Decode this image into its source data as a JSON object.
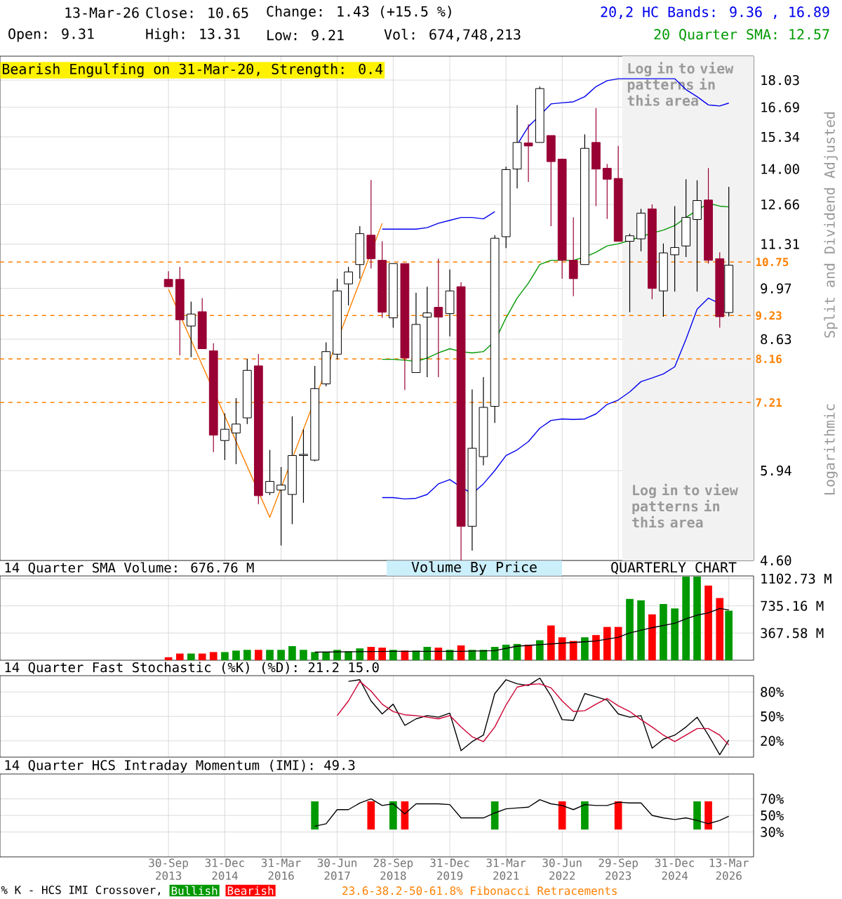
{
  "chart_data": [
    {
      "type": "candlestick",
      "title": "13-Mar-26",
      "x": [
        "2013-09-30",
        "2013-12-31",
        "2014-03-31",
        "2014-06-30",
        "2014-09-30",
        "2014-12-31",
        "2015-03-31",
        "2015-06-30",
        "2015-09-30",
        "2015-12-31",
        "2016-03-31",
        "2016-06-30",
        "2016-09-30",
        "2016-12-31",
        "2017-03-31",
        "2017-06-30",
        "2017-09-30",
        "2017-12-31",
        "2018-03-31",
        "2018-06-30",
        "2018-09-28",
        "2018-12-31",
        "2019-03-31",
        "2019-06-30",
        "2019-09-30",
        "2019-12-31",
        "2020-03-31",
        "2020-06-30",
        "2020-09-30",
        "2020-12-31",
        "2021-03-31",
        "2021-06-30",
        "2021-09-30",
        "2021-12-31",
        "2022-03-31",
        "2022-06-30",
        "2022-09-30",
        "2022-12-31",
        "2023-03-31",
        "2023-06-30",
        "2023-09-29",
        "2023-12-31",
        "2024-03-31",
        "2024-06-30",
        "2024-09-30",
        "2024-12-31",
        "2025-03-31",
        "2025-06-30",
        "2025-09-30",
        "2025-12-31",
        "2026-03-13"
      ],
      "ohlc": [
        [
          10.23,
          10.47,
          10.02,
          10.02
        ],
        [
          10.23,
          10.6,
          8.24,
          9.12
        ],
        [
          8.96,
          9.6,
          8.2,
          9.27
        ],
        [
          9.33,
          9.7,
          8.4,
          8.4
        ],
        [
          8.35,
          8.53,
          6.26,
          6.57
        ],
        [
          6.47,
          6.99,
          6.12,
          6.68
        ],
        [
          6.61,
          7.3,
          6.05,
          6.78
        ],
        [
          6.9,
          8.16,
          6.78,
          7.9
        ],
        [
          8.0,
          8.27,
          5.4,
          5.53
        ],
        [
          5.58,
          6.3,
          5.54,
          5.76
        ],
        [
          5.62,
          6.0,
          4.8,
          5.7
        ],
        [
          5.55,
          6.93,
          5.1,
          6.2
        ],
        [
          6.2,
          6.68,
          5.42,
          6.22
        ],
        [
          6.12,
          8.0,
          6.1,
          7.5
        ],
        [
          7.6,
          8.55,
          7.55,
          8.33
        ],
        [
          8.27,
          10.25,
          8.15,
          9.9
        ],
        [
          10.1,
          10.6,
          9.5,
          10.45
        ],
        [
          10.67,
          11.9,
          10.25,
          11.65
        ],
        [
          11.6,
          13.57,
          10.55,
          10.85
        ],
        [
          10.8,
          11.4,
          9.17,
          9.32
        ],
        [
          9.17,
          10.7,
          8.92,
          10.7
        ],
        [
          10.7,
          10.7,
          7.47,
          8.18
        ],
        [
          7.85,
          9.85,
          7.85,
          9.0
        ],
        [
          9.19,
          10.02,
          7.75,
          9.3
        ],
        [
          9.45,
          10.85,
          7.75,
          9.19
        ],
        [
          9.28,
          10.52,
          8.7,
          9.9
        ],
        [
          10.02,
          10.15,
          4.6,
          5.07
        ],
        [
          5.07,
          7.48,
          4.73,
          6.33
        ],
        [
          6.18,
          7.75,
          6.03,
          7.11
        ],
        [
          7.13,
          11.6,
          6.8,
          11.5
        ],
        [
          11.55,
          14.1,
          11.18,
          13.98
        ],
        [
          14.0,
          16.8,
          13.25,
          15.1
        ],
        [
          15.08,
          15.9,
          13.5,
          14.95
        ],
        [
          15.1,
          17.7,
          15.1,
          17.6
        ],
        [
          15.4,
          15.4,
          11.9,
          14.3
        ],
        [
          14.4,
          14.4,
          10.25,
          10.8
        ],
        [
          10.8,
          12.2,
          9.75,
          10.25
        ],
        [
          10.67,
          15.45,
          10.67,
          14.85
        ],
        [
          15.1,
          16.65,
          12.6,
          14.0
        ],
        [
          14.03,
          14.2,
          12.15,
          13.6
        ],
        [
          13.63,
          14.95,
          11.4,
          11.4
        ],
        [
          11.4,
          11.65,
          9.32,
          11.58
        ],
        [
          11.48,
          12.5,
          11.08,
          12.35
        ],
        [
          12.5,
          12.66,
          9.67,
          9.97
        ],
        [
          9.9,
          11.33,
          9.2,
          11.03
        ],
        [
          10.97,
          12.6,
          9.88,
          11.2
        ],
        [
          11.25,
          13.6,
          10.9,
          12.2
        ],
        [
          12.13,
          13.56,
          9.88,
          12.8
        ],
        [
          12.82,
          14.04,
          10.7,
          10.8
        ],
        [
          10.85,
          11.05,
          8.92,
          9.2
        ],
        [
          9.31,
          13.31,
          9.21,
          10.65
        ]
      ],
      "colors": [
        "#990033",
        "#990033",
        "#ffffff",
        "#990033",
        "#990033",
        "#ffffff",
        "#ffffff",
        "#ffffff",
        "#990033",
        "#ffffff",
        "#ffffff",
        "#ffffff",
        "#ffffff",
        "#ffffff",
        "#ffffff",
        "#ffffff",
        "#ffffff",
        "#ffffff",
        "#990033",
        "#990033",
        "#ffffff",
        "#990033",
        "#ffffff",
        "#ffffff",
        "#990033",
        "#ffffff",
        "#990033",
        "#ffffff",
        "#ffffff",
        "#ffffff",
        "#ffffff",
        "#ffffff",
        "#990033",
        "#ffffff",
        "#990033",
        "#990033",
        "#990033",
        "#ffffff",
        "#990033",
        "#990033",
        "#990033",
        "#ffffff",
        "#ffffff",
        "#990033",
        "#ffffff",
        "#ffffff",
        "#ffffff",
        "#ffffff",
        "#990033",
        "#990033",
        "#ffffff"
      ],
      "series": [
        {
          "type": "line",
          "name": "20,2 HC Bands: 9.36 , 16.89",
          "color": "#0000ee",
          "values": [
            null,
            null,
            null,
            null,
            null,
            null,
            null,
            null,
            null,
            null,
            null,
            null,
            null,
            null,
            null,
            null,
            null,
            null,
            null,
            11.8,
            11.8,
            11.8,
            11.8,
            11.85,
            12.0,
            12.1,
            12.2,
            12.2,
            12.15,
            12.4,
            null,
            15.0,
            15.8,
            16.3,
            16.85,
            16.9,
            16.95,
            17.2,
            17.7,
            18.0,
            18.1,
            18.1,
            18.1,
            18.1,
            18.1,
            18.1,
            17.55,
            17.2,
            16.8,
            16.75,
            16.89
          ]
        },
        {
          "type": "line",
          "color": "#0000ee",
          "values": [
            null,
            null,
            null,
            null,
            null,
            null,
            null,
            null,
            null,
            null,
            null,
            null,
            null,
            null,
            null,
            null,
            null,
            null,
            null,
            5.5,
            5.5,
            5.48,
            5.49,
            5.55,
            5.72,
            5.79,
            5.67,
            5.56,
            5.72,
            5.94,
            6.2,
            6.3,
            6.45,
            6.7,
            6.85,
            6.88,
            6.87,
            6.88,
            6.98,
            7.17,
            7.26,
            7.43,
            7.65,
            7.73,
            7.82,
            7.98,
            8.63,
            9.4,
            9.7,
            9.55,
            null
          ]
        },
        {
          "type": "line",
          "name": "20 Quarter SMA: 12.57",
          "color": "#009900",
          "values": [
            null,
            null,
            null,
            null,
            null,
            null,
            null,
            null,
            null,
            null,
            null,
            null,
            null,
            null,
            null,
            null,
            null,
            null,
            null,
            8.15,
            8.15,
            8.13,
            8.1,
            8.18,
            8.3,
            8.4,
            8.33,
            8.3,
            8.33,
            8.58,
            9.17,
            9.7,
            10.12,
            10.67,
            10.8,
            10.8,
            10.8,
            10.9,
            11.05,
            11.25,
            11.32,
            11.43,
            11.55,
            11.67,
            11.77,
            11.92,
            12.2,
            12.45,
            12.7,
            12.6,
            12.57
          ]
        },
        {
          "type": "line",
          "color": "#ff8000",
          "x": [
            "2013-09-30",
            "2015-12-31",
            "2018-06-30"
          ],
          "values": [
            9.95,
            5.2,
            12.0
          ]
        }
      ],
      "xlim": [
        "2010-01-01",
        "2026-10-01"
      ],
      "ylim": [
        4.6,
        19.3
      ],
      "log": true,
      "xticks": [
        {
          "value": "2013-09-30",
          "label": null
        },
        {
          "value": "2014-12-31",
          "label": null
        },
        {
          "value": "2016-03-31",
          "label": null
        },
        {
          "value": "2017-06-30",
          "label": null
        },
        {
          "value": "2018-09-28",
          "label": null
        },
        {
          "value": "2019-12-31",
          "label": null
        },
        {
          "value": "2021-03-31",
          "label": null
        },
        {
          "value": "2022-06-30",
          "label": null
        },
        {
          "value": "2023-09-29",
          "label": null
        },
        {
          "value": "2024-12-31",
          "label": null
        },
        {
          "value": "2026-03-13",
          "label": null
        }
      ],
      "yticks": [
        18.03,
        16.69,
        15.34,
        {
          "value": 14,
          "label": "14.00"
        },
        12.66,
        11.31,
        9.97,
        8.63,
        5.94,
        {
          "value": 4.6,
          "label": "4.60"
        }
      ],
      "tick_labels": "y",
      "grid": true,
      "legend": "top right",
      "ylabel": "Split and Dividend Adjusted",
      "ref_lines": [
        {
          "axis": "y",
          "value": 10.75,
          "label": "10.75",
          "color": "#ff8000",
          "line_style": "dashed"
        },
        {
          "axis": "y",
          "value": 9.23,
          "label": "9.23",
          "color": "#ff8000",
          "line_style": "dashed"
        },
        {
          "axis": "y",
          "value": 8.16,
          "label": "8.16",
          "color": "#ff8000",
          "line_style": "dashed"
        },
        {
          "axis": "y",
          "value": 7.21,
          "label": "7.21",
          "color": "#ff8000",
          "line_style": "dashed"
        }
      ],
      "bands": [
        {
          "axis": "x",
          "from": "2023-11-01",
          "to": "2026-10-01",
          "label": "Log in to view patterns in this area",
          "color": "#f2f2f2"
        }
      ],
      "annotations": [
        "Close: 10.65",
        "Change: 1.43 (+15.5 %)",
        "Open: 9.31",
        "High: 13.31",
        "Low: 9.21",
        "Vol: 674,748,213",
        "Bearish Engulfing on 31-Mar-20, Strength: 0.4",
        "Log in to view patterns in this area",
        "Logarithmic"
      ]
    },
    {
      "type": "bar",
      "x": [
        "2013-09-30",
        "2013-12-31",
        "2014-03-31",
        "2014-06-30",
        "2014-09-30",
        "2014-12-31",
        "2015-03-31",
        "2015-06-30",
        "2015-09-30",
        "2015-12-31",
        "2016-03-31",
        "2016-06-30",
        "2016-09-30",
        "2016-12-31",
        "2017-03-31",
        "2017-06-30",
        "2017-09-30",
        "2017-12-31",
        "2018-03-31",
        "2018-06-30",
        "2018-09-28",
        "2018-12-31",
        "2019-03-31",
        "2019-06-30",
        "2019-09-30",
        "2019-12-31",
        "2020-03-31",
        "2020-06-30",
        "2020-09-30",
        "2020-12-31",
        "2021-03-31",
        "2021-06-30",
        "2021-09-30",
        "2021-12-31",
        "2022-03-31",
        "2022-06-30",
        "2022-09-30",
        "2022-12-31",
        "2023-03-31",
        "2023-06-30",
        "2023-09-29",
        "2023-12-31",
        "2024-03-31",
        "2024-06-30",
        "2024-09-30",
        "2024-12-31",
        "2025-03-31",
        "2025-06-30",
        "2025-09-30",
        "2025-12-31",
        "2026-03-13"
      ],
      "series": [
        {
          "values": [
            40,
            90,
            90,
            90,
            110,
            110,
            130,
            140,
            140,
            140,
            140,
            190,
            140,
            110,
            110,
            140,
            120,
            160,
            180,
            170,
            140,
            130,
            130,
            180,
            170,
            140,
            200,
            140,
            140,
            180,
            210,
            220,
            210,
            270,
            470,
            310,
            260,
            310,
            340,
            450,
            450,
            830,
            810,
            620,
            760,
            700,
            1130,
            1130,
            1010,
            840,
            670
          ],
          "colors": [
            "#ff0000",
            "#ff0000",
            "#009900",
            "#ff0000",
            "#ff0000",
            "#009900",
            "#009900",
            "#009900",
            "#ff0000",
            "#009900",
            "#009900",
            "#009900",
            "#009900",
            "#009900",
            "#009900",
            "#009900",
            "#009900",
            "#009900",
            "#ff0000",
            "#ff0000",
            "#009900",
            "#ff0000",
            "#009900",
            "#009900",
            "#ff0000",
            "#009900",
            "#ff0000",
            "#009900",
            "#009900",
            "#009900",
            "#009900",
            "#009900",
            "#ff0000",
            "#009900",
            "#ff0000",
            "#ff0000",
            "#ff0000",
            "#009900",
            "#ff0000",
            "#ff0000",
            "#ff0000",
            "#009900",
            "#009900",
            "#ff0000",
            "#009900",
            "#009900",
            "#009900",
            "#009900",
            "#ff0000",
            "#ff0000",
            "#009900"
          ]
        },
        {
          "type": "line",
          "name": "14 Quarter SMA Volume: 676.76 M",
          "color": "#000000",
          "x": [
            "2016-12-31",
            "2018-09-28",
            "2020-03-31",
            "2020-12-31",
            "2021-06-30",
            "2021-12-31",
            "2022-06-30",
            "2022-12-31",
            "2023-03-31",
            "2023-09-29",
            "2023-12-31",
            "2024-06-30",
            "2024-12-31",
            "2025-03-31",
            "2025-06-30",
            "2025-09-30",
            "2025-12-31",
            "2026-03-13"
          ],
          "values": [
            110,
            120,
            120,
            130,
            190,
            210,
            230,
            250,
            260,
            310,
            370,
            440,
            500,
            560,
            610,
            640,
            700,
            680
          ]
        }
      ],
      "xlim": [
        "2010-01-01",
        "2026-10-01"
      ],
      "ylim": [
        0,
        1140
      ],
      "xticks": [
        {
          "value": "2013-09-30",
          "label": null
        },
        {
          "value": "2014-12-31",
          "label": null
        },
        {
          "value": "2016-03-31",
          "label": null
        },
        {
          "value": "2017-06-30",
          "label": null
        },
        {
          "value": "2018-09-28",
          "label": null
        },
        {
          "value": "2019-12-31",
          "label": null
        },
        {
          "value": "2021-03-31",
          "label": null
        },
        {
          "value": "2022-06-30",
          "label": null
        },
        {
          "value": "2023-09-29",
          "label": null
        },
        {
          "value": "2024-12-31",
          "label": null
        },
        {
          "value": "2026-03-13",
          "label": null
        }
      ],
      "yticks": [
        {
          "value": 367.58,
          "label": "367.58 M"
        },
        {
          "value": 735.16,
          "label": "735.16 M"
        },
        {
          "value": 1102.73,
          "label": "1102.73 M"
        }
      ],
      "tick_labels": "y",
      "grid": true,
      "legend": "top left",
      "annotations": [
        "Volume By Price",
        "QUARTERLY CHART"
      ]
    },
    {
      "type": "line",
      "title": "14 Quarter Fast Stochastic (%K) (%D): 21.2  15.0",
      "series": [
        {
          "color": "#000000",
          "x": [
            "2017-09-30",
            "2017-12-31",
            "2018-03-31",
            "2018-06-30",
            "2018-09-28",
            "2018-12-31",
            "2019-03-31",
            "2019-06-30",
            "2019-09-30",
            "2019-12-31",
            "2020-03-31",
            "2020-06-30",
            "2020-09-30",
            "2020-12-31",
            "2021-03-31",
            "2021-06-30",
            "2021-09-30",
            "2021-12-31",
            "2022-03-31",
            "2022-06-30",
            "2022-09-30",
            "2022-12-31",
            "2023-03-31",
            "2023-06-30",
            "2023-09-29",
            "2023-12-31",
            "2024-03-31",
            "2024-06-30",
            "2024-09-30",
            "2024-12-31",
            "2025-03-31",
            "2025-06-30",
            "2025-09-30",
            "2025-12-31",
            "2026-03-13"
          ],
          "values": [
            93,
            95,
            69,
            53,
            65,
            39,
            47,
            51,
            49,
            54,
            8,
            19,
            27,
            78,
            95,
            90,
            88,
            97,
            75,
            46,
            45,
            78,
            74,
            70,
            53,
            49,
            51,
            11,
            22,
            27,
            37,
            49,
            27,
            3,
            21
          ]
        },
        {
          "color": "#cc0033",
          "x": [
            "2017-06-30",
            "2017-09-30",
            "2017-12-31",
            "2018-03-31",
            "2018-06-30",
            "2018-09-28",
            "2018-12-31",
            "2019-03-31",
            "2019-06-30",
            "2019-09-30",
            "2019-12-31",
            "2020-03-31",
            "2020-06-30",
            "2020-09-30",
            "2020-12-31",
            "2021-03-31",
            "2021-06-30",
            "2021-09-30",
            "2021-12-31",
            "2022-03-31",
            "2022-06-30",
            "2022-09-30",
            "2022-12-31",
            "2023-03-31",
            "2023-06-30",
            "2023-09-29",
            "2023-12-31",
            "2024-03-31",
            "2024-06-30",
            "2024-09-30",
            "2024-12-31",
            "2025-03-31",
            "2025-06-30",
            "2025-09-30",
            "2025-12-31",
            "2026-03-13"
          ],
          "values": [
            51,
            69,
            93,
            81,
            65,
            56,
            52,
            51,
            49,
            47,
            51,
            37,
            25,
            19,
            37,
            64,
            86,
            89,
            90,
            85,
            69,
            56,
            57,
            65,
            72,
            63,
            56,
            46,
            37,
            27,
            19,
            27,
            35,
            35,
            27,
            15
          ]
        }
      ],
      "xlim": [
        "2010-01-01",
        "2026-10-01"
      ],
      "ylim": [
        0,
        100
      ],
      "xticks": [
        {
          "value": "2013-09-30",
          "label": null
        },
        {
          "value": "2014-12-31",
          "label": null
        },
        {
          "value": "2016-03-31",
          "label": null
        },
        {
          "value": "2017-06-30",
          "label": null
        },
        {
          "value": "2018-09-28",
          "label": null
        },
        {
          "value": "2019-12-31",
          "label": null
        },
        {
          "value": "2021-03-31",
          "label": null
        },
        {
          "value": "2022-06-30",
          "label": null
        },
        {
          "value": "2023-09-29",
          "label": null
        },
        {
          "value": "2024-12-31",
          "label": null
        },
        {
          "value": "2026-03-13",
          "label": null
        }
      ],
      "yticks": [
        {
          "value": 20,
          "label": "20%"
        },
        {
          "value": 50,
          "label": "50%"
        },
        {
          "value": 80,
          "label": "80%"
        }
      ],
      "tick_labels": "y",
      "grid": true
    },
    {
      "type": "line",
      "title": "14 Quarter HCS Intraday Momentum (IMI): 49.3",
      "series": [
        {
          "type": "bar",
          "name": "Bullish",
          "color": "#009900",
          "x": [
            "2016-12-31",
            "2018-09-28",
            "2020-12-31",
            "2022-12-31",
            "2025-06-30"
          ],
          "base": [
            33,
            33,
            33,
            33,
            33
          ],
          "values": [
            34,
            34,
            34,
            34,
            34
          ]
        },
        {
          "type": "bar",
          "name": "Bearish",
          "color": "#ff0000",
          "x": [
            "2018-03-31",
            "2018-12-31",
            "2022-06-30",
            "2023-09-29",
            "2025-09-30"
          ],
          "base": [
            33,
            33,
            33,
            33,
            33
          ],
          "values": [
            34,
            34,
            34,
            34,
            34
          ]
        },
        {
          "color": "#000000",
          "x": [
            "2016-12-31",
            "2017-03-31",
            "2017-06-30",
            "2017-09-30",
            "2017-12-31",
            "2018-03-31",
            "2018-06-30",
            "2018-09-28",
            "2018-12-31",
            "2019-03-31",
            "2019-06-30",
            "2019-09-30",
            "2019-12-31",
            "2020-03-31",
            "2020-06-30",
            "2020-09-30",
            "2020-12-31",
            "2021-03-31",
            "2021-06-30",
            "2021-09-30",
            "2021-12-31",
            "2022-03-31",
            "2022-06-30",
            "2022-09-30",
            "2022-12-31",
            "2023-03-31",
            "2023-06-30",
            "2023-09-29",
            "2023-12-31",
            "2024-03-31",
            "2024-06-30",
            "2024-09-30",
            "2024-12-31",
            "2025-03-31",
            "2025-06-30",
            "2025-09-30",
            "2025-12-31",
            "2026-03-13"
          ],
          "values": [
            37,
            40,
            57,
            57,
            65,
            70,
            62,
            64,
            52,
            64,
            64,
            64,
            63,
            47,
            47,
            47,
            53,
            58,
            59,
            60,
            69,
            64,
            62,
            57,
            63,
            62,
            62,
            66,
            65,
            65,
            50,
            47,
            45,
            47,
            44,
            40,
            44,
            49
          ]
        }
      ],
      "xlim": [
        "2010-01-01",
        "2026-10-01"
      ],
      "ylim": [
        0,
        100
      ],
      "xticks": [
        {
          "value": "2013-09-30",
          "label": "30-Sep 2013"
        },
        {
          "value": "2014-12-31",
          "label": "31-Dec 2014"
        },
        {
          "value": "2016-03-31",
          "label": "31-Mar 2016"
        },
        {
          "value": "2017-06-30",
          "label": "30-Jun 2017"
        },
        {
          "value": "2018-09-28",
          "label": "28-Sep 2018"
        },
        {
          "value": "2019-12-31",
          "label": "31-Dec 2019"
        },
        {
          "value": "2021-03-31",
          "label": "31-Mar 2021"
        },
        {
          "value": "2022-06-30",
          "label": "30-Jun 2022"
        },
        {
          "value": "2023-09-29",
          "label": "29-Sep 2023"
        },
        {
          "value": "2024-12-31",
          "label": "31-Dec 2024"
        },
        {
          "value": "2026-03-13",
          "label": "13-Mar 2026"
        }
      ],
      "yticks": [
        {
          "value": 30,
          "label": "30%"
        },
        {
          "value": 50,
          "label": "50%"
        },
        {
          "value": 70,
          "label": "70%"
        }
      ],
      "grid": true,
      "legend": "bottom",
      "legend_title": "% K - HCS IMI Crossover,",
      "annotations": [
        "23.6-38.2-50-61.8% Fibonacci Retracements"
      ]
    }
  ]
}
